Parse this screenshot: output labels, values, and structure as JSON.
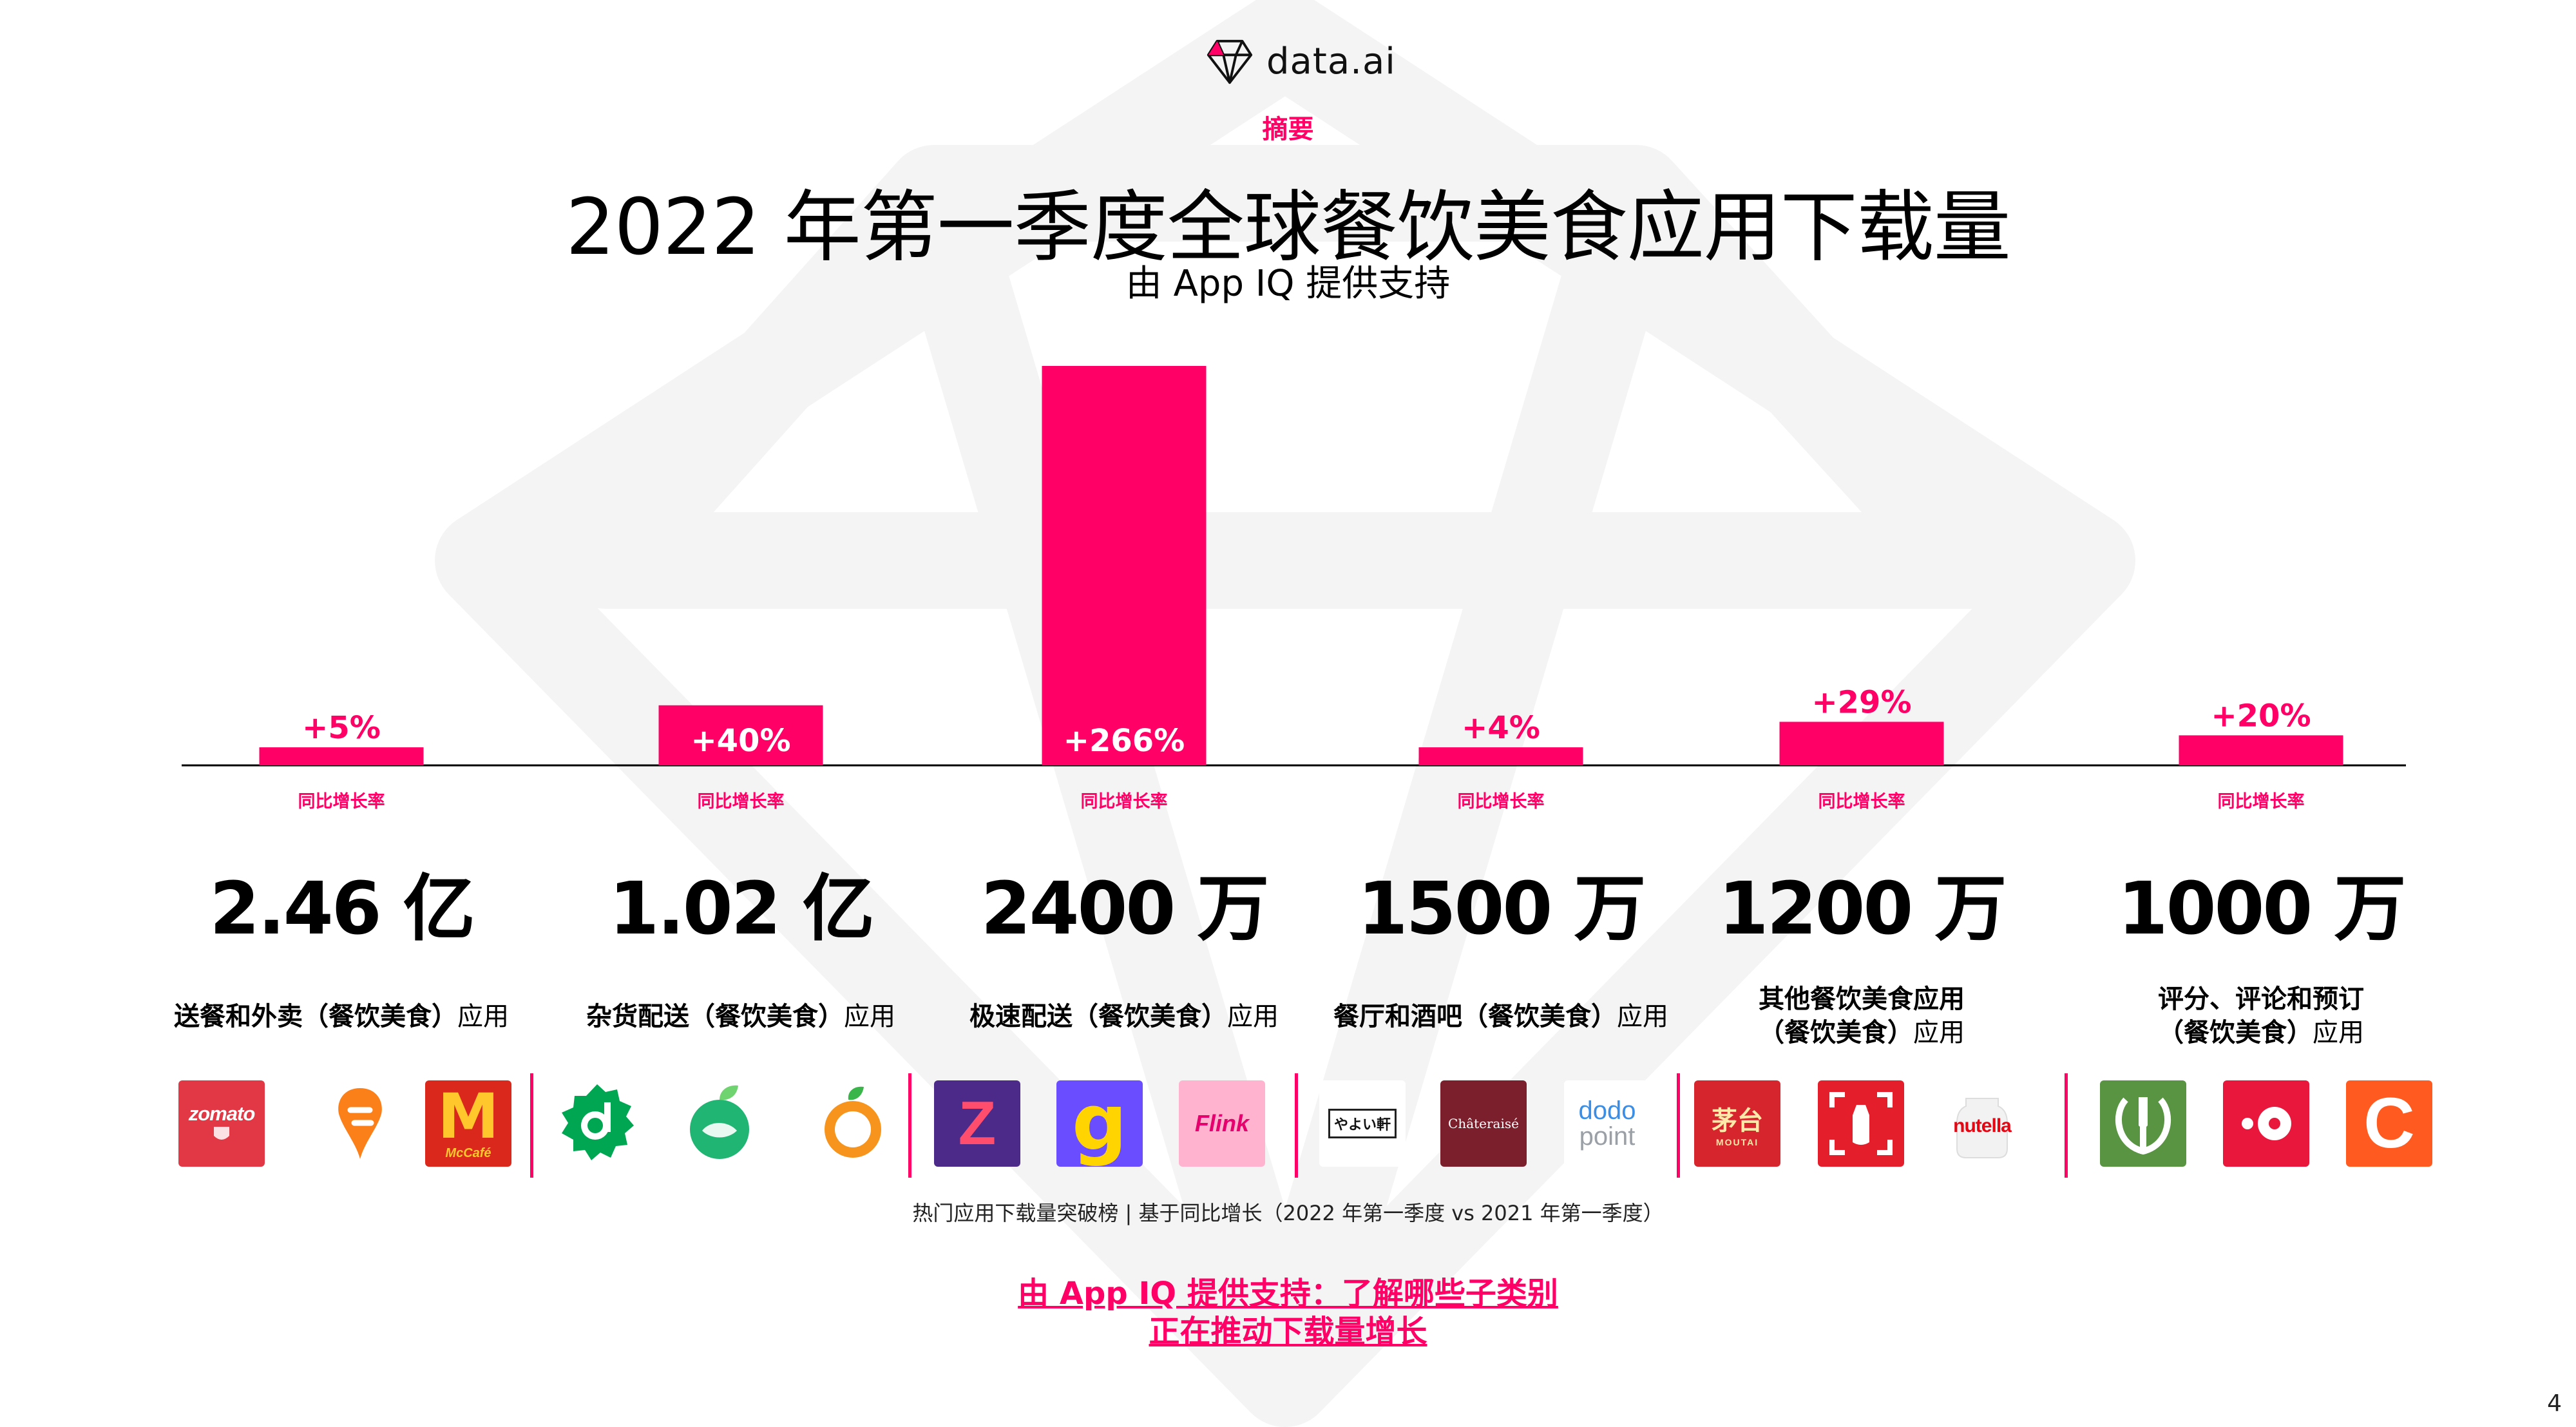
{
  "brand": {
    "name": "data.ai",
    "logo_icon": "diamond-logo-icon",
    "accent": "#ff0066"
  },
  "header": {
    "eyebrow": "摘要",
    "title": "2022 年第一季度全球餐饮美食应用下载量",
    "subtitle": "由 App IQ 提供支持"
  },
  "chart_data": {
    "type": "bar",
    "categories": [
      "送餐和外卖（餐饮美食）应用",
      "杂货配送（餐饮美食）应用",
      "极速配送（餐饮美食）应用",
      "餐厅和酒吧（餐饮美食）应用",
      "其他餐饮美食应用（餐饮美食）应用",
      "评分、评论和预订（餐饮美食）应用"
    ],
    "values": [
      5,
      40,
      266,
      4,
      29,
      20
    ],
    "value_labels": [
      "+5%",
      "+40%",
      "+266%",
      "+4%",
      "+29%",
      "+20%"
    ],
    "bar_caption": "同比增长率",
    "downloads": [
      "2.46 亿",
      "1.02 亿",
      "2400 万",
      "1500 万",
      "1200 万",
      "1000 万"
    ],
    "ylim": [
      0,
      266
    ],
    "grid": false,
    "bar_color": "#ff0066"
  },
  "categories": [
    {
      "bold": "送餐和外卖（餐饮美食）",
      "rest": "应用",
      "apps": [
        "zomato",
        "swiggy",
        "mcdonalds"
      ]
    },
    {
      "bold": "杂货配送（餐饮美食）",
      "rest": "应用",
      "apps": [
        "dunzo",
        "green-grocer",
        "orange-grocer"
      ]
    },
    {
      "bold": "极速配送（餐饮美食）",
      "rest": "应用",
      "apps": [
        "zepto",
        "gorillas",
        "flink"
      ]
    },
    {
      "bold": "餐厅和酒吧（餐饮美食）",
      "rest": "应用",
      "apps": [
        "yayoiken",
        "chateraise",
        "dodo-point"
      ]
    },
    {
      "bold": "其他餐饮美食应用",
      "bold2": "（餐饮美食）",
      "rest": "应用",
      "apps": [
        "moutai",
        "coca-cola",
        "nutella"
      ]
    },
    {
      "bold": "评分、评论和预订",
      "bold2": "（餐饮美食）",
      "rest": "应用",
      "apps": [
        "thefork",
        "yelp-like",
        "c-app"
      ]
    }
  ],
  "app_icons": {
    "zomato": {
      "text": "zomato",
      "bg": "#e23744"
    },
    "mcdonalds": {
      "text": "M",
      "sub": "McCafé",
      "bg": "#da291c"
    },
    "flink": {
      "text": "Flink",
      "bg": "#ffb3cf"
    },
    "yayoiken": {
      "text": "やよい軒",
      "bg": "#ffffff"
    },
    "chateraise": {
      "text": "Châteraisé",
      "bg": "#7a1f2b"
    },
    "dodo-point": {
      "text": "dodo",
      "sub": "point",
      "bg": "#ffffff"
    },
    "moutai": {
      "text": "茅台",
      "sub": "MOUTAI",
      "bg": "#d6252c"
    },
    "nutella": {
      "text": "nutella",
      "bg": "#ffffff"
    },
    "c-app": {
      "text": "C",
      "bg": "#ff5a1f"
    },
    "zepto": {
      "text": "Z",
      "bg": "#4b2a8a"
    },
    "gorillas": {
      "text": "g",
      "bg": "#6a4dff"
    }
  },
  "footnote": "热门应用下载量突破榜 | 基于同比增长（2022 年第一季度 vs 2021 年第一季度）",
  "cta": {
    "line1": "由 App IQ 提供支持：了解哪些子类别",
    "line2": "正在推动下载量增长"
  },
  "page_number": "4"
}
